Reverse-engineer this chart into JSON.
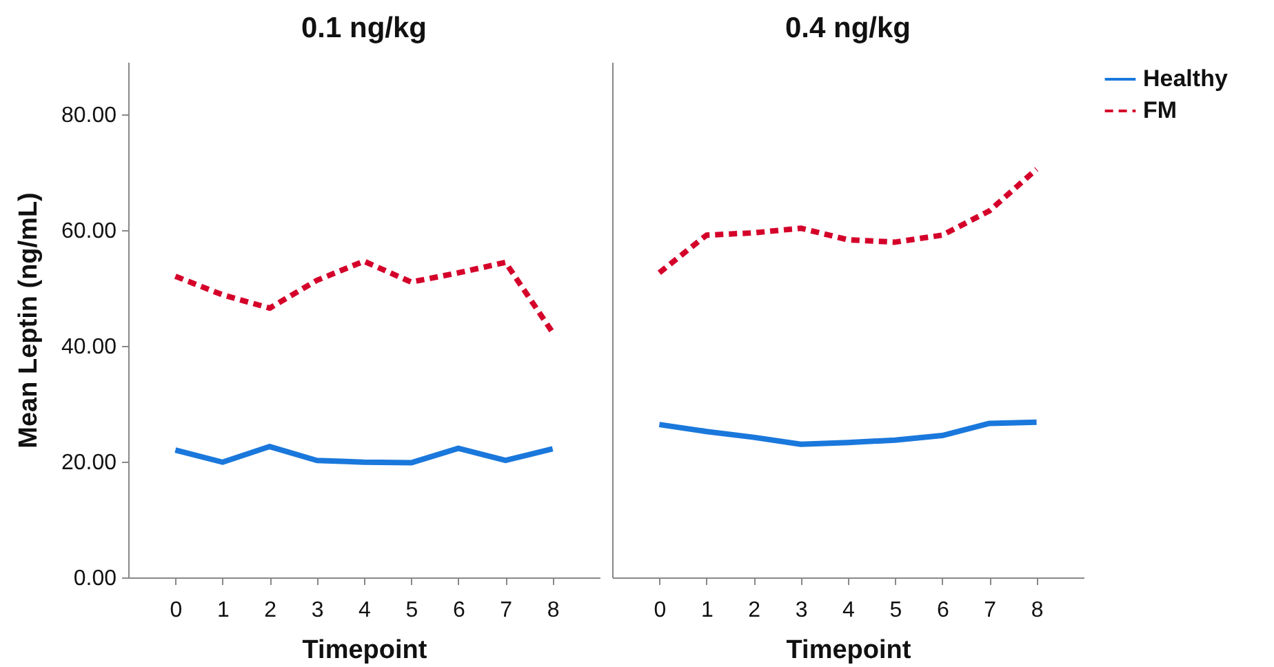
{
  "chart_data": [
    {
      "type": "line",
      "title": "0.1 ng/kg",
      "xlabel": "Timepoint",
      "ylabel": "Mean Leptin (ng/mL)",
      "x": [
        0,
        1,
        2,
        3,
        4,
        5,
        6,
        7,
        8
      ],
      "series": [
        {
          "name": "Healthy",
          "color": "#1a78dc",
          "line_style": "solid",
          "values": [
            22.0,
            19.9,
            22.6,
            20.2,
            19.9,
            19.8,
            22.3,
            20.2,
            22.2
          ]
        },
        {
          "name": "FM",
          "color": "#d4002a",
          "line_style": "dashed",
          "values": [
            52.0,
            48.8,
            46.5,
            51.3,
            54.6,
            51.0,
            52.6,
            54.4,
            42.3
          ]
        }
      ],
      "xlim": [
        -1,
        9
      ],
      "xticks": [
        0,
        1,
        2,
        3,
        4,
        5,
        6,
        7,
        8
      ],
      "ylim": [
        0,
        89
      ],
      "yticks": [
        {
          "value": 0,
          "label": "0.00"
        },
        {
          "value": 20,
          "label": "20.00"
        },
        {
          "value": 40,
          "label": "40.00"
        },
        {
          "value": 60,
          "label": "60.00"
        },
        {
          "value": 80,
          "label": "80.00"
        }
      ],
      "grid": false,
      "legend": "right",
      "marker": "none"
    },
    {
      "type": "line",
      "title": "0.4 ng/kg",
      "xlabel": "Timepoint",
      "x": [
        0,
        1,
        2,
        3,
        4,
        5,
        6,
        7,
        8
      ],
      "series": [
        {
          "name": "Healthy",
          "color": "#1a78dc",
          "line_style": "solid",
          "values": [
            26.4,
            25.2,
            24.2,
            23.0,
            23.3,
            23.7,
            24.5,
            26.6,
            26.8
          ]
        },
        {
          "name": "FM",
          "color": "#d4002a",
          "line_style": "dashed",
          "values": [
            52.6,
            59.1,
            59.5,
            60.3,
            58.3,
            57.9,
            59.1,
            63.3,
            70.5
          ]
        }
      ],
      "xlim": [
        -1,
        9
      ],
      "xticks": [
        0,
        1,
        2,
        3,
        4,
        5,
        6,
        7,
        8
      ],
      "ylim": [
        0,
        89
      ],
      "tick_labels": "x",
      "grid": false,
      "legend": "right",
      "marker": "none"
    }
  ]
}
